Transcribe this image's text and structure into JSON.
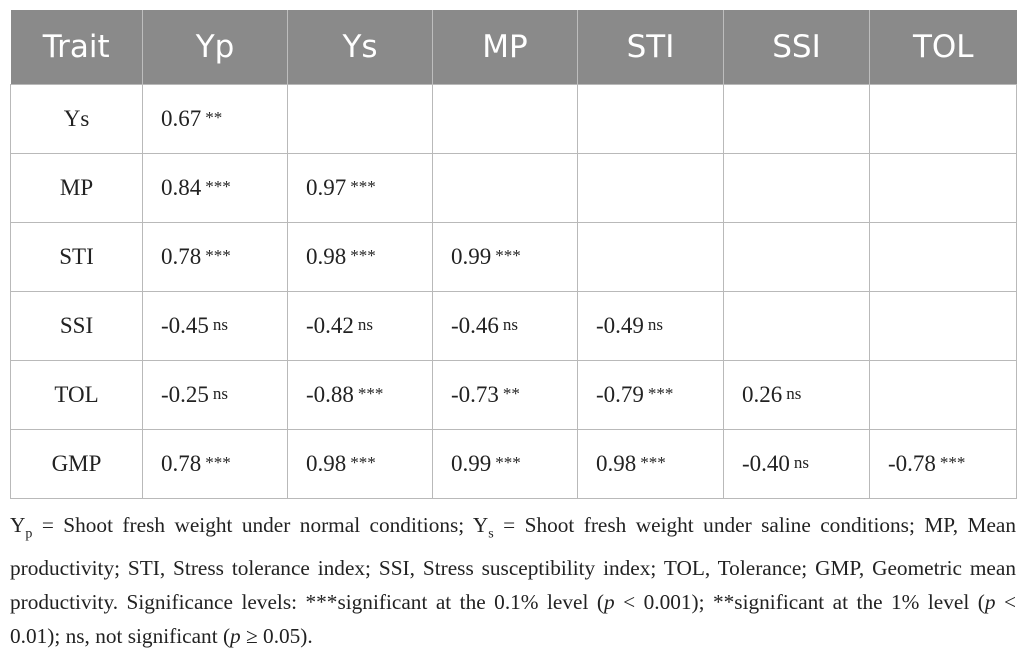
{
  "table": {
    "header": [
      "Trait",
      "Yp",
      "Ys",
      "MP",
      "STI",
      "SSI",
      "TOL"
    ],
    "rows": [
      [
        "Ys",
        {
          "r": "0.67",
          "s": "**"
        },
        null,
        null,
        null,
        null,
        null
      ],
      [
        "MP",
        {
          "r": "0.84",
          "s": "***"
        },
        {
          "r": "0.97",
          "s": "***"
        },
        null,
        null,
        null,
        null
      ],
      [
        "STI",
        {
          "r": "0.78",
          "s": "***"
        },
        {
          "r": "0.98",
          "s": "***"
        },
        {
          "r": "0.99",
          "s": "***"
        },
        null,
        null,
        null
      ],
      [
        "SSI",
        {
          "r": "-0.45",
          "s": "ns"
        },
        {
          "r": "-0.42",
          "s": "ns"
        },
        {
          "r": "-0.46",
          "s": "ns"
        },
        {
          "r": "-0.49",
          "s": "ns"
        },
        null,
        null
      ],
      [
        "TOL",
        {
          "r": "-0.25",
          "s": "ns"
        },
        {
          "r": "-0.88",
          "s": "***"
        },
        {
          "r": "-0.73",
          "s": "**"
        },
        {
          "r": "-0.79",
          "s": "***"
        },
        {
          "r": "0.26",
          "s": "ns"
        },
        null
      ],
      [
        "GMP",
        {
          "r": "0.78",
          "s": "***"
        },
        {
          "r": "0.98",
          "s": "***"
        },
        {
          "r": "0.99",
          "s": "***"
        },
        {
          "r": "0.98",
          "s": "***"
        },
        {
          "r": "-0.40",
          "s": "ns"
        },
        {
          "r": "-0.78",
          "s": "***"
        }
      ]
    ]
  },
  "footnote": [
    "Y",
    "p",
    " = Shoot fresh weight under normal conditions; Y",
    "s",
    " = Shoot fresh weight under saline conditions; MP, Mean productivity; STI, Stress tolerance index; SSI, Stress susceptibility index; TOL, Tolerance; GMP, Geometric mean productivity. Significance levels: ***significant at the 0.1% level (",
    "p",
    " < 0.001); **significant at the 1% level (",
    "p",
    " < 0.01); ns, not significant (",
    "p",
    " ≥ 0.05)."
  ]
}
